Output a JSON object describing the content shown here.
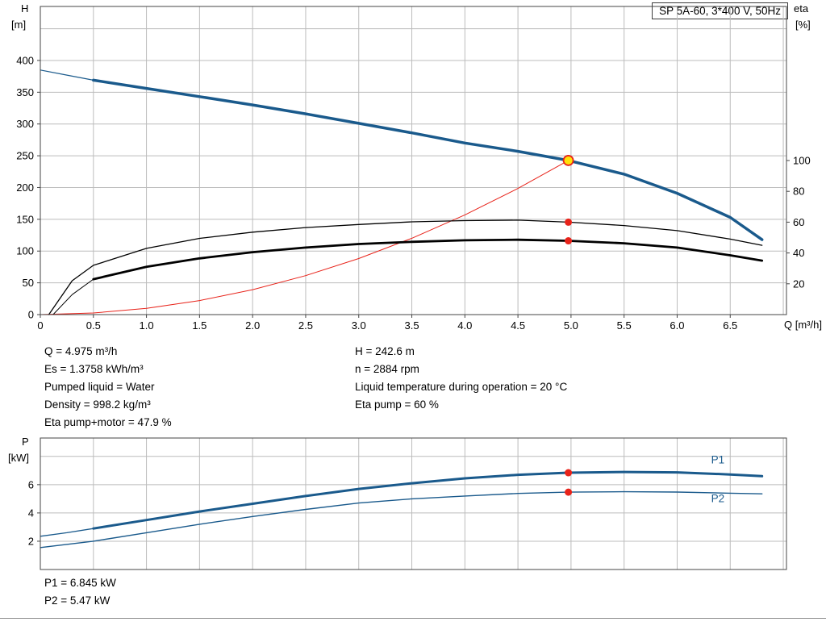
{
  "title_box": "SP 5A-60, 3*400 V, 50Hz",
  "colors": {
    "curve_blue": "#1a5a8c",
    "marker_red": "#e8231a",
    "duty_yellow": "#ffe10a",
    "grid": "#bcbcbc",
    "border": "#454545",
    "text": "#000000"
  },
  "chart_data": [
    {
      "id": "head-efficiency-chart",
      "type": "line",
      "title": "SP 5A-60, 3*400 V, 50Hz",
      "x_axis": {
        "label": "Q [m³/h]",
        "lim": [
          0,
          7.03
        ],
        "ticks": [
          0,
          0.5,
          1,
          1.5,
          2,
          2.5,
          3,
          3.5,
          4,
          4.5,
          5,
          5.5,
          6,
          6.5
        ],
        "tick_labels": [
          "0",
          "0.5",
          "1.0",
          "1.5",
          "2.0",
          "2.5",
          "3.0",
          "3.5",
          "4.0",
          "4.5",
          "5.0",
          "5.5",
          "6.0",
          "6.5"
        ],
        "grid": [
          0.5,
          1,
          1.5,
          2,
          2.5,
          3,
          3.5,
          4,
          4.5,
          5,
          5.5,
          6,
          6.5,
          7
        ]
      },
      "y_left": {
        "title_lines": [
          "H",
          "[m]"
        ],
        "lim": [
          0,
          485
        ],
        "ticks": [
          0,
          50,
          100,
          150,
          200,
          250,
          300,
          350,
          400
        ],
        "tick_labels": [
          "0",
          "50",
          "100",
          "150",
          "200",
          "250",
          "300",
          "350",
          "400"
        ],
        "grid": [
          50,
          100,
          150,
          200,
          250,
          300,
          350,
          400,
          450
        ]
      },
      "y_right": {
        "title_lines": [
          "eta",
          "[%]"
        ],
        "lim": [
          0,
          200
        ],
        "ticks": [
          20,
          40,
          60,
          80,
          100
        ],
        "tick_labels": [
          "20",
          "40",
          "60",
          "80",
          "100"
        ]
      },
      "series": [
        {
          "name": "system-curve",
          "axis": "right_no",
          "axis2": "left",
          "axisname": "left",
          "color": "#e8231a",
          "width": 1,
          "points": [
            [
              0,
              0
            ],
            [
              0.5,
              2.5
            ],
            [
              1,
              9.8
            ],
            [
              1.5,
              22.1
            ],
            [
              2,
              39.2
            ],
            [
              2.5,
              61.3
            ],
            [
              3,
              88.2
            ],
            [
              3.5,
              120.1
            ],
            [
              4,
              156.9
            ],
            [
              4.5,
              198.6
            ],
            [
              4.975,
              242.6
            ]
          ]
        },
        {
          "name": "eta-pump-curve",
          "axisname": "right",
          "color": "#000000",
          "width": 1.3,
          "points": [
            [
              0.08,
              0
            ],
            [
              0.3,
              22
            ],
            [
              0.5,
              32
            ],
            [
              1,
              43
            ],
            [
              1.5,
              49.5
            ],
            [
              2,
              53.5
            ],
            [
              2.5,
              56.5
            ],
            [
              3,
              58.5
            ],
            [
              3.5,
              60.2
            ],
            [
              4,
              61
            ],
            [
              4.5,
              61.3
            ],
            [
              4.975,
              60
            ],
            [
              5.5,
              57.8
            ],
            [
              6,
              54.5
            ],
            [
              6.5,
              49
            ],
            [
              6.8,
              45
            ]
          ]
        },
        {
          "name": "eta-pump-motor-lead",
          "axisname": "right",
          "color": "#000000",
          "width": 1,
          "points": [
            [
              0.12,
              0
            ],
            [
              0.3,
              13
            ],
            [
              0.5,
              23
            ]
          ]
        },
        {
          "name": "eta-pump-motor-curve",
          "axisname": "right",
          "color": "#000000",
          "width": 2.8,
          "points": [
            [
              0.5,
              23
            ],
            [
              1,
              31
            ],
            [
              1.5,
              36.5
            ],
            [
              2,
              40.5
            ],
            [
              2.5,
              43.5
            ],
            [
              3,
              45.8
            ],
            [
              3.5,
              47.2
            ],
            [
              4,
              48.2
            ],
            [
              4.5,
              48.6
            ],
            [
              4.975,
              47.9
            ],
            [
              5.5,
              46.3
            ],
            [
              6,
              43.5
            ],
            [
              6.5,
              38.5
            ],
            [
              6.8,
              35
            ]
          ]
        },
        {
          "name": "pump-curve-lead",
          "axisname": "left",
          "color": "#1a5a8c",
          "width": 1.2,
          "points": [
            [
              0,
              385
            ],
            [
              0.25,
              377
            ],
            [
              0.5,
              369
            ]
          ]
        },
        {
          "name": "pump-curve",
          "axisname": "left",
          "color": "#1a5a8c",
          "width": 3.5,
          "points": [
            [
              0.5,
              369
            ],
            [
              1,
              356
            ],
            [
              1.5,
              343
            ],
            [
              2,
              330
            ],
            [
              2.5,
              316
            ],
            [
              3,
              301
            ],
            [
              3.5,
              286
            ],
            [
              4,
              270
            ],
            [
              4.5,
              257
            ],
            [
              4.975,
              242.6
            ],
            [
              5.5,
              221
            ],
            [
              6,
              191
            ],
            [
              6.5,
              153
            ],
            [
              6.8,
              118
            ]
          ]
        }
      ],
      "markers": [
        {
          "name": "eta-pump-marker",
          "axisname": "right",
          "x": 4.975,
          "y": 60,
          "r": 4.5,
          "fill": "#e8231a"
        },
        {
          "name": "eta-pump-motor-marker",
          "axisname": "right",
          "x": 4.975,
          "y": 47.9,
          "r": 4.5,
          "fill": "#e8231a"
        },
        {
          "name": "duty-point-marker",
          "axisname": "left",
          "x": 4.975,
          "y": 242.6,
          "r": 6,
          "fill": "#ffe10a",
          "stroke": "#e8231a",
          "stroke_width": 1.8
        }
      ],
      "series_labels": []
    },
    {
      "id": "power-chart",
      "type": "line",
      "x_axis": {
        "label": "",
        "lim": [
          0,
          7.03
        ],
        "ticks": [],
        "tick_labels": [],
        "grid": [
          0.5,
          1,
          1.5,
          2,
          2.5,
          3,
          3.5,
          4,
          4.5,
          5,
          5.5,
          6,
          6.5,
          7
        ]
      },
      "y_left": {
        "title_lines": [
          "P",
          "[kW]"
        ],
        "lim": [
          0,
          9.3
        ],
        "ticks": [
          2,
          4,
          6
        ],
        "tick_labels": [
          "2",
          "4",
          "6"
        ],
        "grid": [
          2,
          4,
          6,
          8
        ]
      },
      "series": [
        {
          "name": "p1-curve-lead",
          "axisname": "left",
          "color": "#1a5a8c",
          "width": 1.3,
          "points": [
            [
              0,
              2.35
            ],
            [
              0.25,
              2.6
            ],
            [
              0.5,
              2.9
            ]
          ]
        },
        {
          "name": "p1-curve",
          "axisname": "left",
          "color": "#1a5a8c",
          "width": 3,
          "points": [
            [
              0.5,
              2.9
            ],
            [
              1,
              3.5
            ],
            [
              1.5,
              4.1
            ],
            [
              2,
              4.65
            ],
            [
              2.5,
              5.2
            ],
            [
              3,
              5.7
            ],
            [
              3.5,
              6.1
            ],
            [
              4,
              6.45
            ],
            [
              4.5,
              6.7
            ],
            [
              4.975,
              6.845
            ],
            [
              5.5,
              6.9
            ],
            [
              6,
              6.87
            ],
            [
              6.5,
              6.72
            ],
            [
              6.8,
              6.6
            ]
          ]
        },
        {
          "name": "p2-curve",
          "axisname": "left",
          "color": "#1a5a8c",
          "width": 1.4,
          "points": [
            [
              0,
              1.55
            ],
            [
              0.5,
              2.0
            ],
            [
              1,
              2.6
            ],
            [
              1.5,
              3.2
            ],
            [
              2,
              3.75
            ],
            [
              2.5,
              4.25
            ],
            [
              3,
              4.7
            ],
            [
              3.5,
              5.0
            ],
            [
              4,
              5.2
            ],
            [
              4.5,
              5.38
            ],
            [
              4.975,
              5.47
            ],
            [
              5.5,
              5.5
            ],
            [
              6,
              5.48
            ],
            [
              6.5,
              5.4
            ],
            [
              6.8,
              5.35
            ]
          ]
        }
      ],
      "markers": [
        {
          "name": "p1-marker",
          "axisname": "left",
          "x": 4.975,
          "y": 6.845,
          "r": 4.5,
          "fill": "#e8231a"
        },
        {
          "name": "p2-marker",
          "axisname": "left",
          "x": 4.975,
          "y": 5.47,
          "r": 4.5,
          "fill": "#e8231a"
        }
      ],
      "series_labels": [
        {
          "text": "P1",
          "x": 6.32,
          "y": 7.5,
          "color": "#1a5a8c"
        },
        {
          "text": "P2",
          "x": 6.32,
          "y": 4.75,
          "color": "#1a5a8c"
        }
      ]
    }
  ],
  "info": {
    "left": [
      "Q = 4.975 m³/h",
      "Es = 1.3758 kWh/m³",
      "Pumped liquid = Water",
      "Density = 998.2 kg/m³",
      "Eta pump+motor = 47.9 %"
    ],
    "right": [
      "H = 242.6 m",
      "n = 2884 rpm",
      "Liquid temperature during operation = 20 °C",
      "Eta pump = 60 %"
    ]
  },
  "results": {
    "p1_line": "P1 = 6.845 kW",
    "p2_line": "P2 = 5.47 kW"
  }
}
